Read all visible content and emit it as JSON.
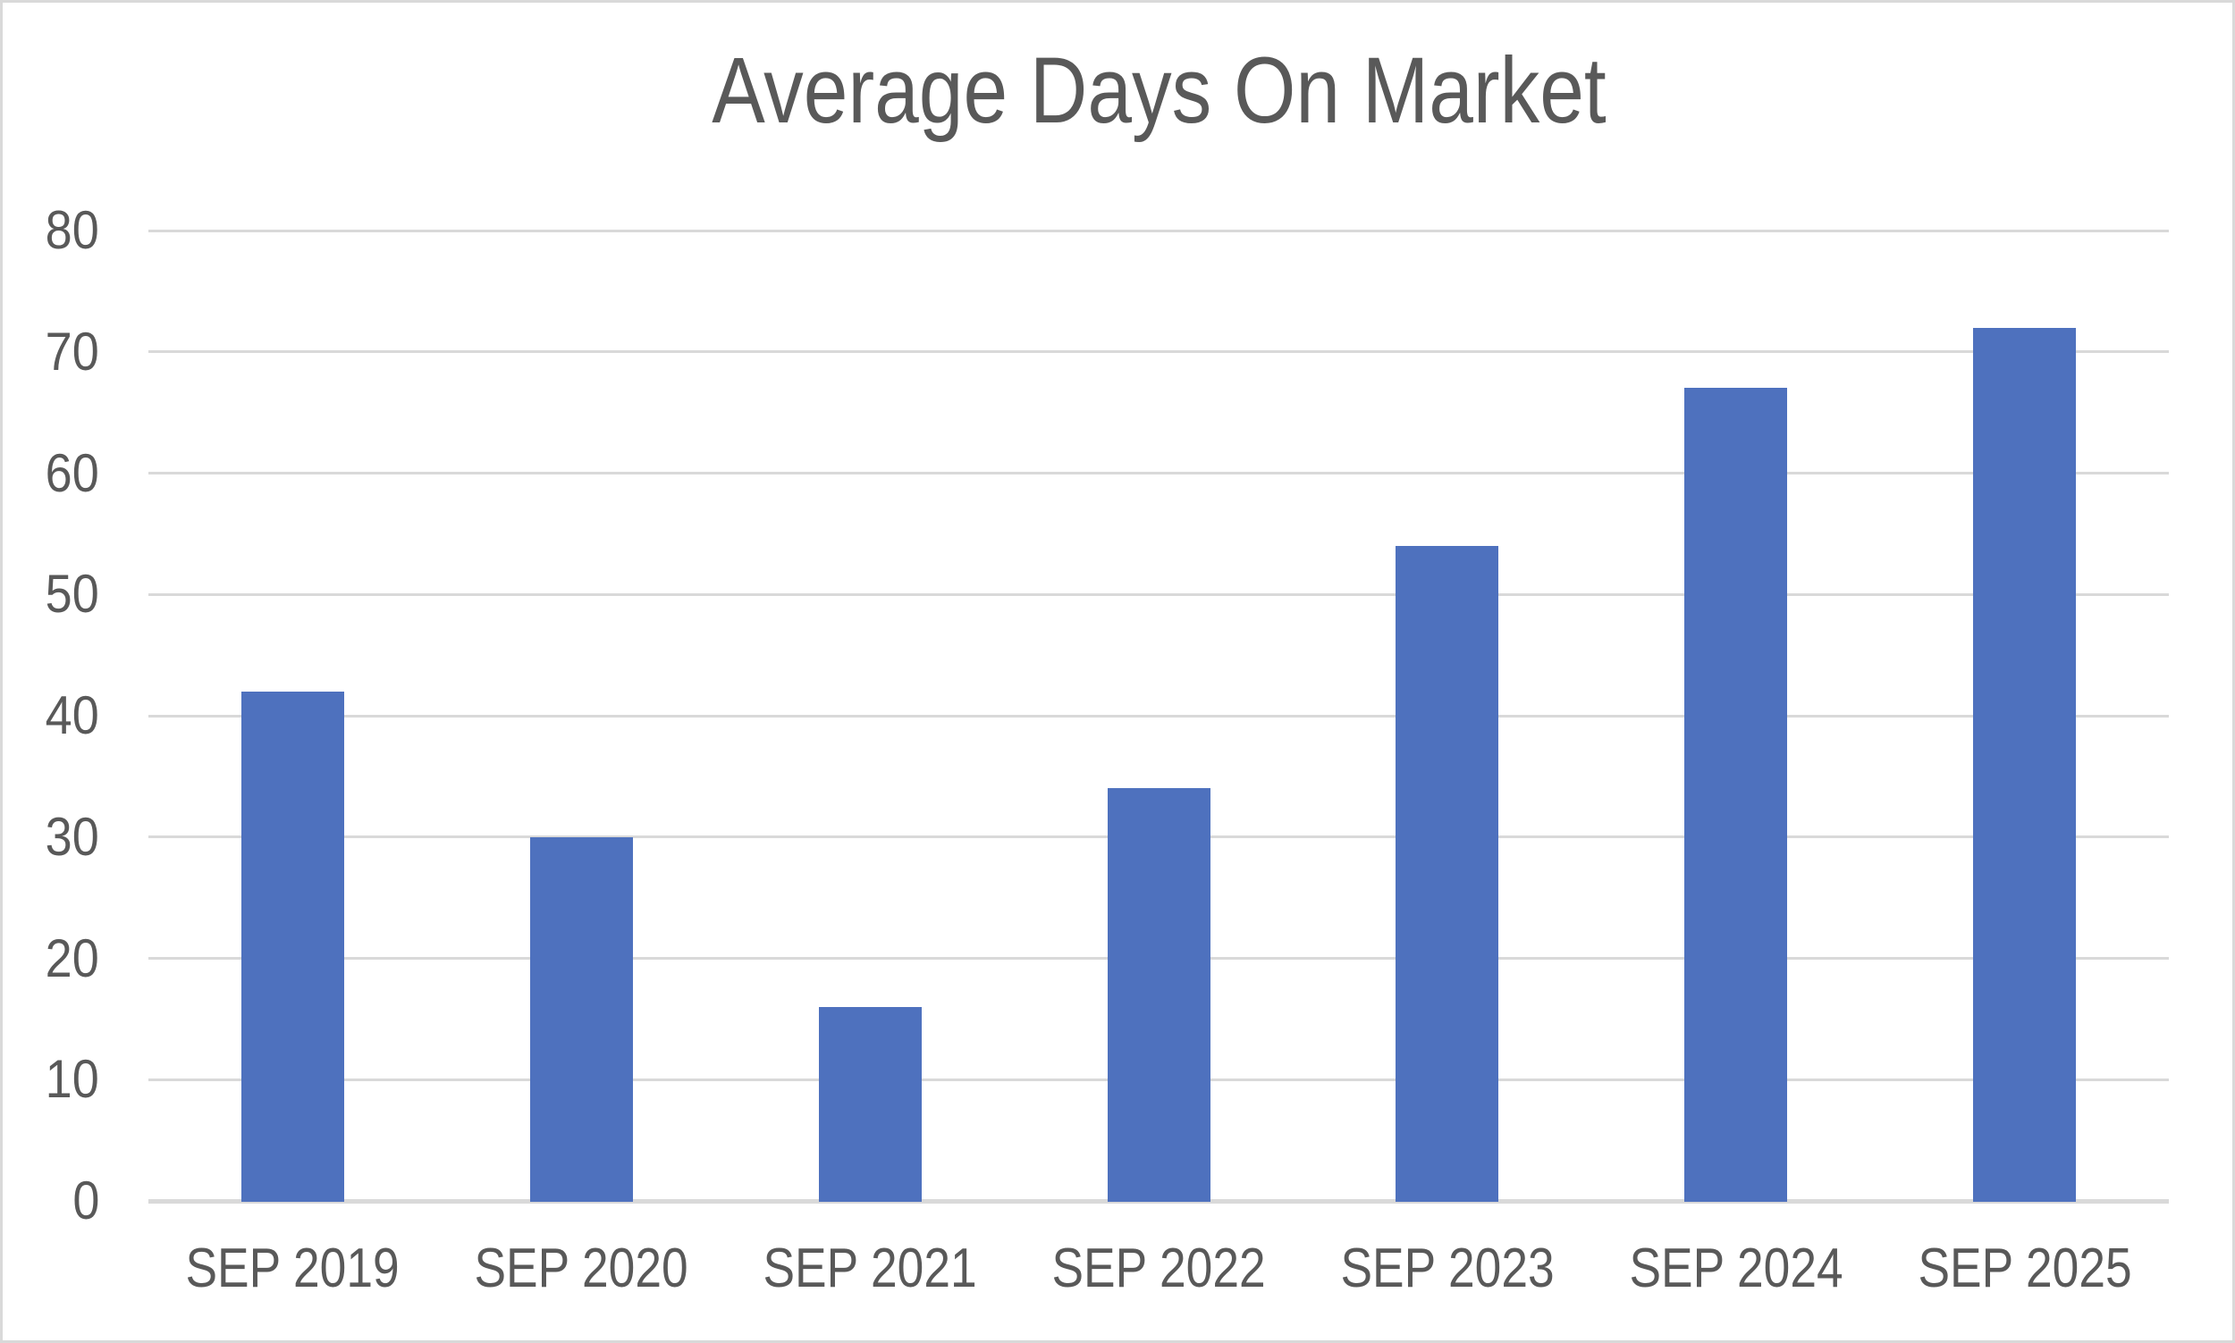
{
  "chart_data": {
    "type": "bar",
    "title": "Average Days On Market",
    "categories": [
      "SEP 2019",
      "SEP 2020",
      "SEP 2021",
      "SEP 2022",
      "SEP 2023",
      "SEP 2024",
      "SEP 2025"
    ],
    "values": [
      42,
      30,
      16,
      34,
      54,
      67,
      72
    ],
    "xlabel": "",
    "ylabel": "",
    "ylim": [
      0,
      80
    ],
    "ytick_step": 10,
    "ytick_labels": [
      "0",
      "10",
      "20",
      "30",
      "40",
      "50",
      "60",
      "70",
      "80"
    ],
    "grid": true,
    "legend_position": "none",
    "colors": {
      "bar": "#4E71BE",
      "grid": "#D9D9D9",
      "axis": "#D9D9D9",
      "text": "#595959",
      "frame_border": "#D9D9D9",
      "background": "#FFFFFF"
    }
  }
}
